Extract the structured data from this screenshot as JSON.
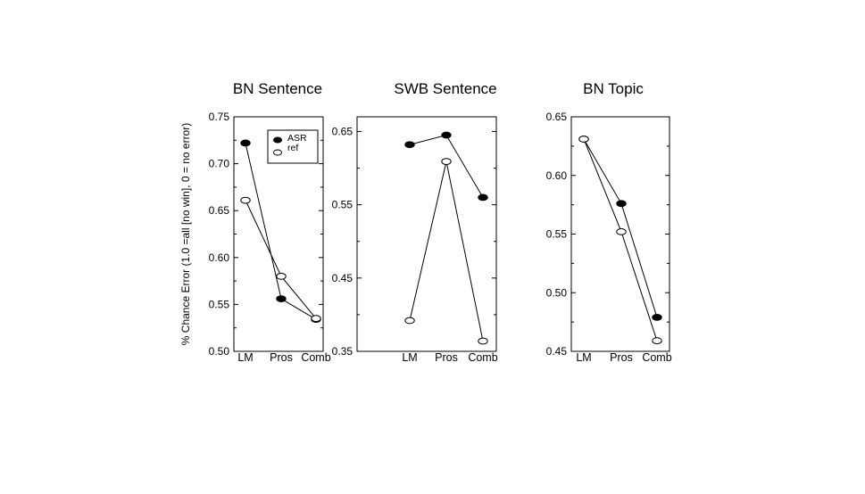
{
  "chart_data": [
    {
      "type": "line",
      "title": "BN Sentence",
      "ylabel": "% Chance Error (1.0 =all [no win], 0 = no error)",
      "categories": [
        "LM",
        "Pros",
        "Comb"
      ],
      "ylim": [
        0.5,
        0.75
      ],
      "yticks": [
        "0.50",
        "0.55",
        "0.60",
        "0.65",
        "0.70",
        "0.75"
      ],
      "ytick_values": [
        0.5,
        0.55,
        0.6,
        0.65,
        0.7,
        0.75
      ],
      "legend": {
        "placement": "top-right"
      },
      "series": [
        {
          "name": "ASR",
          "values": [
            0.722,
            0.556,
            0.534
          ],
          "color": "#000000",
          "filled": true
        },
        {
          "name": "ref",
          "values": [
            0.661,
            0.58,
            0.535
          ],
          "color": "#000000",
          "filled": false
        }
      ]
    },
    {
      "type": "line",
      "title": "SWB Sentence",
      "categories": [
        "LM",
        "Pros",
        "Comb"
      ],
      "ylim": [
        0.35,
        0.67
      ],
      "yticks": [
        "0.35",
        "0.45",
        "0.55",
        "0.65"
      ],
      "ytick_values": [
        0.35,
        0.45,
        0.55,
        0.65
      ],
      "series": [
        {
          "name": "ASR",
          "values": [
            0.632,
            0.645,
            0.56
          ],
          "color": "#000000",
          "filled": true
        },
        {
          "name": "ref",
          "values": [
            0.392,
            0.609,
            0.364
          ],
          "color": "#000000",
          "filled": false
        }
      ]
    },
    {
      "type": "line",
      "title": "BN Topic",
      "categories": [
        "LM",
        "Pros",
        "Comb"
      ],
      "ylim": [
        0.45,
        0.65
      ],
      "yticks": [
        "0.45",
        "0.50",
        "0.55",
        "0.60",
        "0.65"
      ],
      "ytick_values": [
        0.45,
        0.5,
        0.55,
        0.6,
        0.65
      ],
      "series": [
        {
          "name": "ASR",
          "values": [
            0.631,
            0.576,
            0.479
          ],
          "color": "#000000",
          "filled": true
        },
        {
          "name": "ref",
          "values": [
            0.631,
            0.552,
            0.459
          ],
          "color": "#000000",
          "filled": false
        }
      ]
    }
  ]
}
